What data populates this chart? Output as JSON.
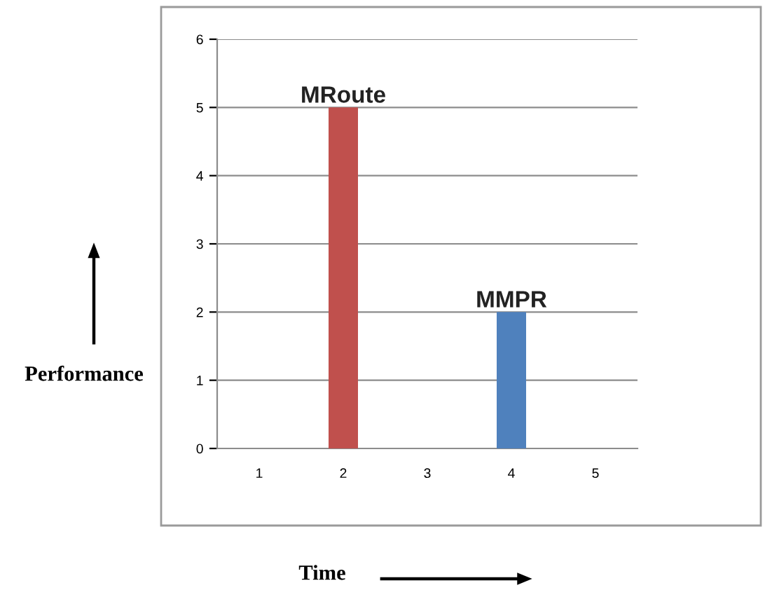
{
  "chart_data": {
    "type": "bar",
    "xlabel": "Time",
    "ylabel": "Performance",
    "categories": [
      "1",
      "2",
      "3",
      "4",
      "5"
    ],
    "series": [
      {
        "name": "MRoute",
        "color": "#c0504d",
        "values": [
          null,
          5,
          null,
          null,
          null
        ]
      },
      {
        "name": "MMPR",
        "color": "#4f81bd",
        "values": [
          null,
          null,
          null,
          2,
          null
        ]
      }
    ],
    "ylim": [
      0,
      6
    ],
    "yticks": [
      0,
      1,
      2,
      3,
      4,
      5,
      6
    ],
    "grid": "y",
    "legend": false
  }
}
